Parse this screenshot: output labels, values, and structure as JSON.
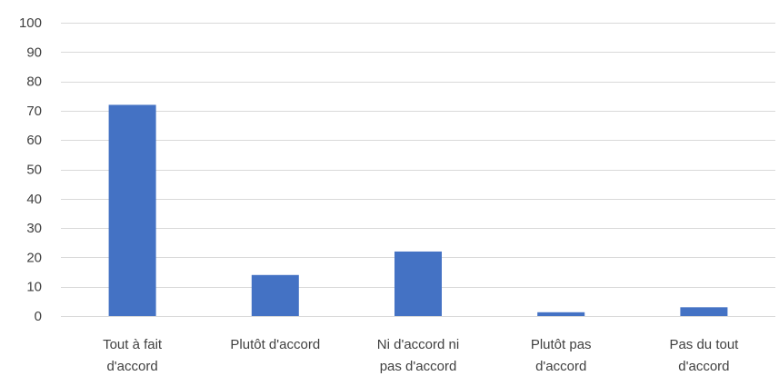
{
  "chart_data": {
    "type": "bar",
    "title": "",
    "xlabel": "",
    "ylabel": "",
    "categories": [
      [
        "Tout à fait",
        "d'accord"
      ],
      [
        "Plutôt d'accord"
      ],
      [
        "Ni d'accord ni",
        "pas d'accord"
      ],
      [
        "Plutôt pas",
        "d'accord"
      ],
      [
        "Pas du tout",
        "d'accord"
      ]
    ],
    "values": [
      72,
      14,
      22,
      1.3,
      3
    ],
    "ylim": [
      0,
      100
    ],
    "yticks": [
      0,
      10,
      20,
      30,
      40,
      50,
      60,
      70,
      80,
      90,
      100
    ],
    "grid": true,
    "legend": "none",
    "colors": {
      "bar": "#4472c4",
      "grid": "#d9d9d9",
      "text": "#404040"
    }
  }
}
